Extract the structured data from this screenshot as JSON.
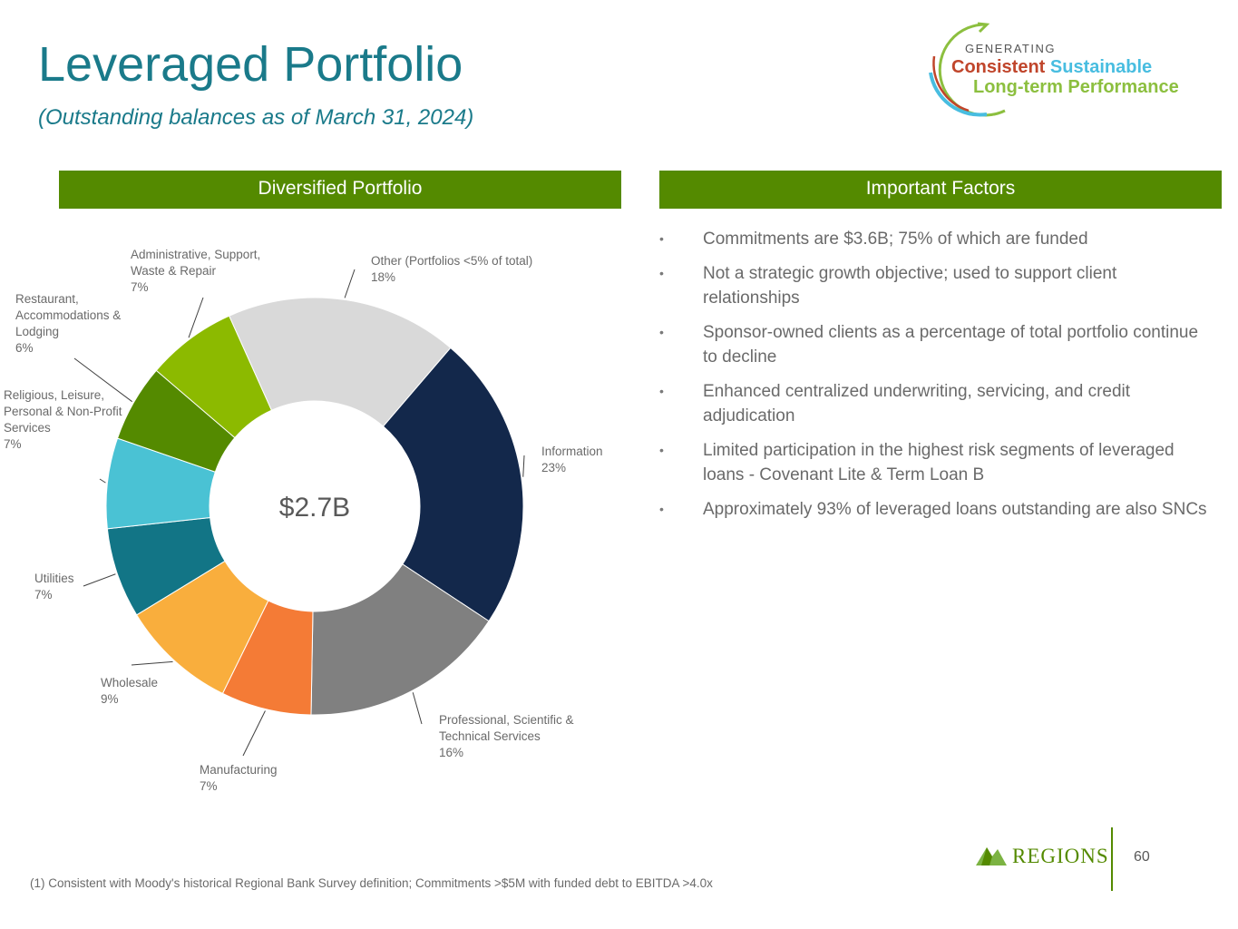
{
  "header": {
    "title": "Leveraged Portfolio",
    "subtitle": "(Outstanding balances as of March 31, 2024)"
  },
  "tagline": {
    "line1": "GENERATING",
    "word1": "Consistent",
    "word2": "Sustainable",
    "line3": "Long-term Performance"
  },
  "sections": {
    "left_header": "Diversified Portfolio",
    "right_header": "Important Factors"
  },
  "factors": [
    "Commitments are $3.6B;  75% of which are funded",
    "Not a strategic growth objective; used to support client relationships",
    "Sponsor-owned clients as a percentage of total portfolio continue to decline",
    "Enhanced centralized underwriting, servicing, and credit adjudication",
    "Limited participation in the highest risk segments of leveraged loans - Covenant Lite & Term Loan B",
    "Approximately 93% of leveraged loans outstanding are also SNCs"
  ],
  "bullet_glyph": "•",
  "footnote": "(1) Consistent with Moody's historical Regional Bank Survey definition; Commitments >$5M with funded debt to EBITDA >4.0x",
  "brand": "REGIONS",
  "page_number": "60",
  "colors": {
    "title": "#1a7a8a",
    "band": "#548a00"
  },
  "chart_data": {
    "type": "donut",
    "center_label": "$2.7B",
    "slices": [
      {
        "name": "Information",
        "label_lines": [
          "Information"
        ],
        "pct_label": "23%",
        "value": 23,
        "color": "#13284b"
      },
      {
        "name": "Professional, Scientific & Technical Services",
        "label_lines": [
          "Professional, Scientific &",
          "Technical Services"
        ],
        "pct_label": "16%",
        "value": 16,
        "color": "#808080"
      },
      {
        "name": "Manufacturing",
        "label_lines": [
          "Manufacturing"
        ],
        "pct_label": "7%",
        "value": 7,
        "color": "#f47b36"
      },
      {
        "name": "Wholesale",
        "label_lines": [
          "Wholesale"
        ],
        "pct_label": "9%",
        "value": 9,
        "color": "#f9ae3d"
      },
      {
        "name": "Utilities",
        "label_lines": [
          "Utilities"
        ],
        "pct_label": "7%",
        "value": 7,
        "color": "#127586"
      },
      {
        "name": "Religious, Leisure, Personal & Non-Profit Services",
        "label_lines": [
          "Religious, Leisure,",
          "Personal & Non-Profit",
          "Services"
        ],
        "pct_label": "7%",
        "value": 7,
        "color": "#4ac2d4"
      },
      {
        "name": "Restaurant, Accommodations & Lodging",
        "label_lines": [
          "Restaurant,",
          "Accommodations &",
          "Lodging"
        ],
        "pct_label": "6%",
        "value": 6,
        "color": "#548a00"
      },
      {
        "name": "Administrative, Support, Waste & Repair",
        "label_lines": [
          "Administrative, Support,",
          "Waste & Repair"
        ],
        "pct_label": "7%",
        "value": 7,
        "color": "#8cba00"
      },
      {
        "name": "Other (Portfolios <5% of total)",
        "label_lines": [
          "Other (Portfolios <5% of total)"
        ],
        "pct_label": "18%",
        "value": 18,
        "color": "#d9d9d9"
      }
    ]
  }
}
